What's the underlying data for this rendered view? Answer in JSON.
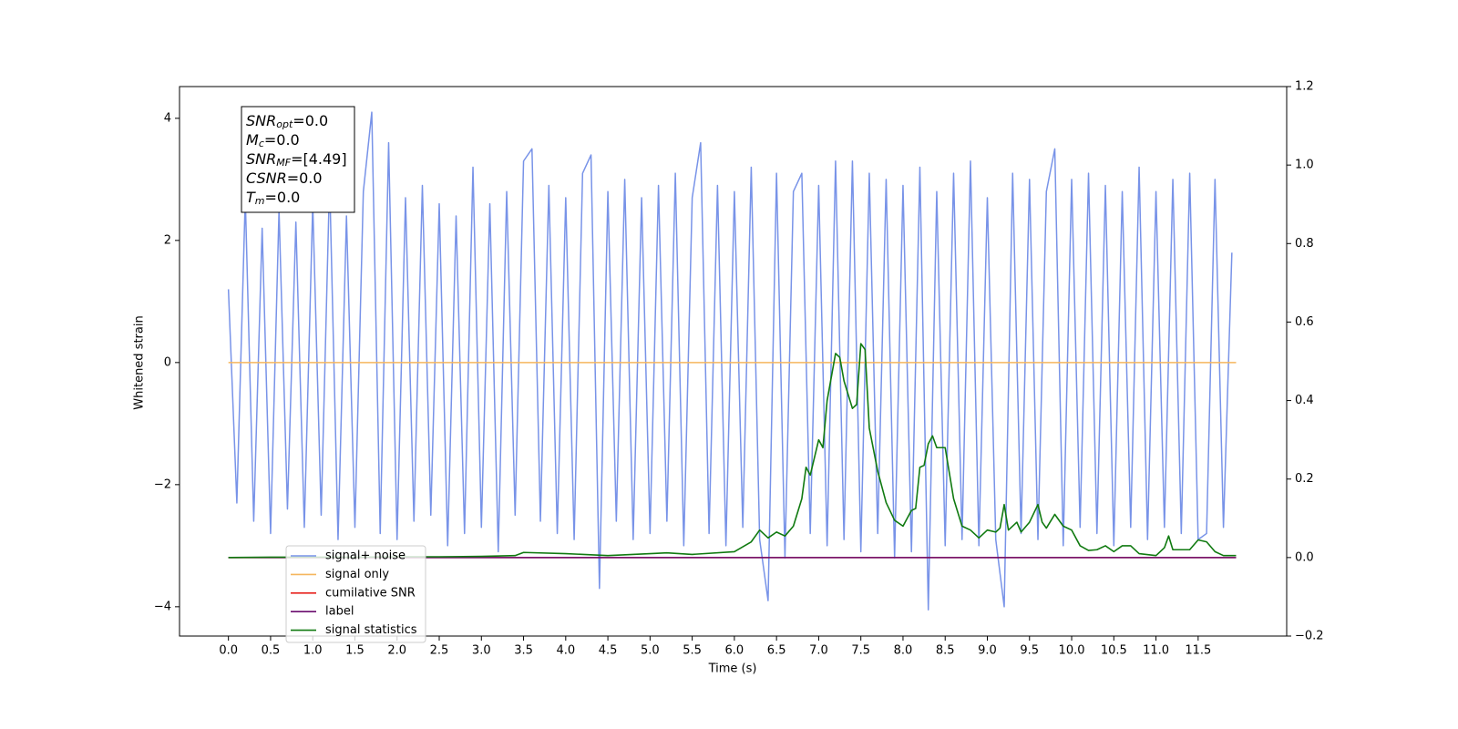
{
  "chart_data": {
    "type": "line",
    "xlabel": "Time (s)",
    "ylabel": "Whitened strain",
    "xlim": [
      -0.58,
      12.55
    ],
    "ylim": [
      -4.48,
      4.52
    ],
    "y2lim": [
      -0.2,
      1.2
    ],
    "xticks": [
      {
        "value": 0,
        "label": "0.0"
      },
      0.5,
      {
        "value": 1,
        "label": "1.0"
      },
      1.5,
      {
        "value": 2,
        "label": "2.0"
      },
      2.5,
      {
        "value": 3,
        "label": "3.0"
      },
      3.5,
      {
        "value": 4,
        "label": "4.0"
      },
      4.5,
      {
        "value": 5,
        "label": "5.0"
      },
      5.5,
      {
        "value": 6,
        "label": "6.0"
      },
      6.5,
      {
        "value": 7,
        "label": "7.0"
      },
      7.5,
      {
        "value": 8,
        "label": "8.0"
      },
      8.5,
      {
        "value": 9,
        "label": "9.0"
      },
      9.5,
      {
        "value": 10,
        "label": "10.0"
      },
      10.5,
      {
        "value": 11,
        "label": "11.0"
      },
      11.5
    ],
    "yticks": [
      {
        "value": -4,
        "label": "−4"
      },
      {
        "value": -2,
        "label": "−2"
      },
      0,
      2,
      4
    ],
    "y2ticks": [
      {
        "value": -0.2,
        "label": "−0.2"
      },
      {
        "value": 0,
        "label": "0.0"
      },
      0.2,
      0.4,
      0.6,
      0.8,
      {
        "value": 1,
        "label": "1.0"
      },
      1.2
    ],
    "annotations": [
      {
        "name": "SNR",
        "sub": "opt",
        "value": "=0.0"
      },
      {
        "name": "M",
        "sub": "c",
        "value": "=0.0"
      },
      {
        "name": "SNR",
        "sub": "MF",
        "value": "=[4.49]"
      },
      {
        "name": "CSNR",
        "sub": "",
        "value": "=0.0"
      },
      {
        "name": "T",
        "sub": "m",
        "value": "=0.0"
      }
    ],
    "legend": "lower left",
    "series": [
      {
        "name": "signal+ noise",
        "color": "#7893e8",
        "axis": "y",
        "x": [
          0,
          0.1,
          0.2,
          0.3,
          0.4,
          0.5,
          0.6,
          0.7,
          0.8,
          0.9,
          1,
          1.1,
          1.2,
          1.3,
          1.4,
          1.5,
          1.6,
          1.7,
          1.8,
          1.9,
          2,
          2.1,
          2.2,
          2.3,
          2.4,
          2.5,
          2.6,
          2.7,
          2.8,
          2.9,
          3,
          3.1,
          3.2,
          3.3,
          3.4,
          3.5,
          3.6,
          3.7,
          3.8,
          3.9,
          4,
          4.1,
          4.2,
          4.3,
          4.4,
          4.5,
          4.6,
          4.7,
          4.8,
          4.9,
          5,
          5.1,
          5.2,
          5.3,
          5.4,
          5.5,
          5.6,
          5.7,
          5.8,
          5.9,
          6,
          6.1,
          6.2,
          6.3,
          6.4,
          6.5,
          6.6,
          6.7,
          6.8,
          6.9,
          7,
          7.1,
          7.2,
          7.3,
          7.4,
          7.5,
          7.6,
          7.7,
          7.8,
          7.9,
          8,
          8.1,
          8.2,
          8.3,
          8.4,
          8.5,
          8.6,
          8.7,
          8.8,
          8.9,
          9,
          9.1,
          9.2,
          9.3,
          9.4,
          9.5,
          9.6,
          9.7,
          9.8,
          9.9,
          10,
          10.1,
          10.2,
          10.3,
          10.4,
          10.5,
          10.6,
          10.7,
          10.8,
          10.9,
          11,
          11.1,
          11.2,
          11.3,
          11.4,
          11.5,
          11.6,
          11.7,
          11.8,
          11.9
        ],
        "values": [
          1.2,
          -2.3,
          2.7,
          -2.6,
          2.2,
          -2.8,
          2.5,
          -2.4,
          2.3,
          -2.7,
          2.6,
          -2.5,
          3.0,
          -2.9,
          2.4,
          -2.7,
          2.8,
          4.1,
          -2.8,
          3.6,
          -2.9,
          2.7,
          -2.6,
          2.9,
          -2.5,
          2.6,
          -3.0,
          2.4,
          -2.8,
          3.2,
          -2.7,
          2.6,
          -3.1,
          2.8,
          -2.5,
          3.3,
          3.5,
          -2.6,
          2.9,
          -2.8,
          2.7,
          -2.9,
          3.1,
          3.4,
          -3.7,
          2.8,
          -2.6,
          3.0,
          -2.9,
          2.7,
          -2.8,
          2.9,
          -2.6,
          3.1,
          -3.0,
          2.7,
          3.6,
          -2.8,
          2.9,
          -3.0,
          2.8,
          -2.7,
          3.2,
          -2.9,
          -3.9,
          3.1,
          -3.2,
          2.8,
          3.1,
          -2.8,
          2.9,
          -3.0,
          3.3,
          -2.9,
          3.3,
          -3.1,
          3.1,
          -2.8,
          3.0,
          -3.2,
          2.9,
          -3.1,
          3.2,
          -4.05,
          2.8,
          -3.0,
          3.1,
          -2.9,
          3.3,
          -3.0,
          2.7,
          -2.9,
          -4.0,
          3.1,
          -2.8,
          3.0,
          -2.9,
          2.8,
          3.5,
          -3.0,
          3.0,
          -2.7,
          3.1,
          -2.8,
          2.9,
          -3.0,
          2.8,
          -2.7,
          3.2,
          -2.9,
          2.8,
          -2.7,
          3.0,
          -2.8,
          3.1,
          -2.9,
          -2.8,
          3.0,
          -2.7,
          1.8
        ]
      },
      {
        "name": "signal only",
        "color": "#f5b65e",
        "axis": "y",
        "x": [
          0,
          11.95
        ],
        "values": [
          0,
          0
        ]
      },
      {
        "name": "cumilative SNR",
        "color": "#e8231d",
        "axis": "y2",
        "x": [
          0,
          11.95
        ],
        "values": [
          0,
          0
        ]
      },
      {
        "name": "label",
        "color": "#6a0c6e",
        "axis": "y2",
        "x": [
          0,
          11.95
        ],
        "values": [
          0,
          0
        ]
      },
      {
        "name": "signal statistics",
        "color": "#107a10",
        "axis": "y2",
        "x": [
          0,
          0.5,
          1,
          1.5,
          2,
          2.5,
          3,
          3.4,
          3.5,
          4.0,
          4.5,
          5.0,
          5.2,
          5.5,
          6.0,
          6.2,
          6.3,
          6.4,
          6.5,
          6.6,
          6.7,
          6.8,
          6.85,
          6.9,
          7.0,
          7.05,
          7.1,
          7.2,
          7.25,
          7.3,
          7.4,
          7.45,
          7.5,
          7.55,
          7.6,
          7.7,
          7.8,
          7.9,
          8.0,
          8.1,
          8.15,
          8.2,
          8.25,
          8.3,
          8.35,
          8.4,
          8.5,
          8.6,
          8.7,
          8.8,
          8.9,
          9.0,
          9.1,
          9.15,
          9.2,
          9.25,
          9.35,
          9.4,
          9.5,
          9.6,
          9.65,
          9.7,
          9.8,
          9.9,
          10.0,
          10.1,
          10.2,
          10.3,
          10.4,
          10.5,
          10.6,
          10.7,
          10.8,
          11.0,
          11.1,
          11.15,
          11.2,
          11.3,
          11.4,
          11.5,
          11.6,
          11.7,
          11.8,
          11.95
        ],
        "values": [
          0,
          0.001,
          0.001,
          0.001,
          0.002,
          0.002,
          0.003,
          0.005,
          0.013,
          0.01,
          0.005,
          0.01,
          0.012,
          0.008,
          0.015,
          0.04,
          0.07,
          0.05,
          0.065,
          0.055,
          0.08,
          0.15,
          0.23,
          0.21,
          0.3,
          0.28,
          0.4,
          0.52,
          0.51,
          0.45,
          0.38,
          0.39,
          0.545,
          0.53,
          0.33,
          0.22,
          0.14,
          0.095,
          0.08,
          0.12,
          0.125,
          0.23,
          0.235,
          0.29,
          0.31,
          0.28,
          0.28,
          0.15,
          0.08,
          0.07,
          0.05,
          0.07,
          0.065,
          0.075,
          0.135,
          0.07,
          0.09,
          0.065,
          0.09,
          0.135,
          0.09,
          0.075,
          0.11,
          0.08,
          0.07,
          0.03,
          0.018,
          0.02,
          0.03,
          0.015,
          0.03,
          0.03,
          0.01,
          0.005,
          0.025,
          0.055,
          0.02,
          0.02,
          0.02,
          0.045,
          0.04,
          0.015,
          0.005,
          0.005
        ]
      }
    ]
  }
}
